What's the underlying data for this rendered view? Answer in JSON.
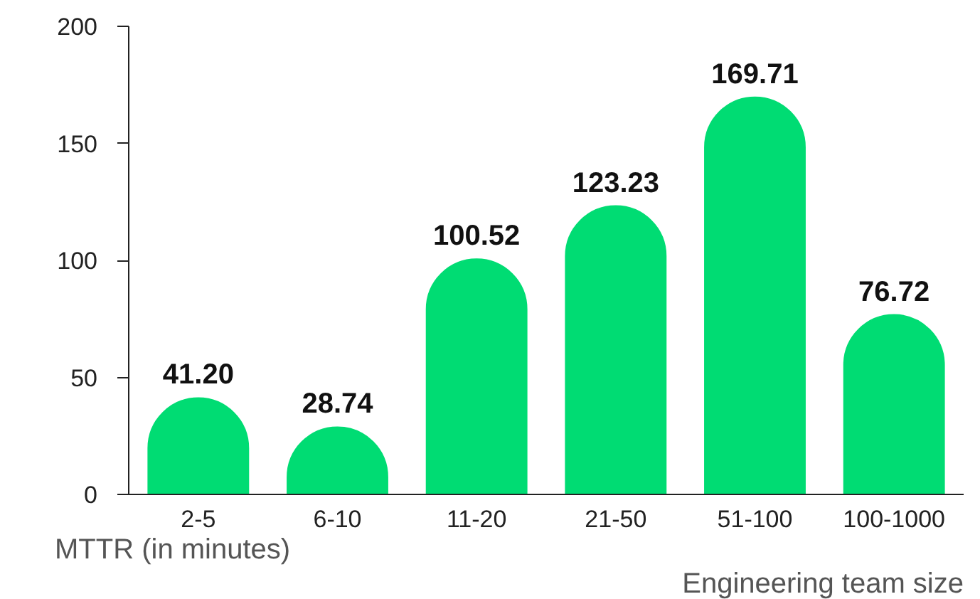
{
  "chart_data": {
    "type": "bar",
    "categories": [
      "2-5",
      "6-10",
      "11-20",
      "21-50",
      "51-100",
      "100-1000"
    ],
    "values": [
      41.2,
      28.74,
      100.52,
      123.23,
      169.71,
      76.72
    ],
    "value_labels": [
      "41.20",
      "28.74",
      "100.52",
      "123.23",
      "169.71",
      "76.72"
    ],
    "color": "#00dc73",
    "ylim": [
      0,
      200
    ],
    "yticks": [
      0,
      50,
      100,
      150,
      200
    ],
    "xlabel": "Engineering team size",
    "ylabel": "MTTR (in minutes)",
    "grid": false
  }
}
